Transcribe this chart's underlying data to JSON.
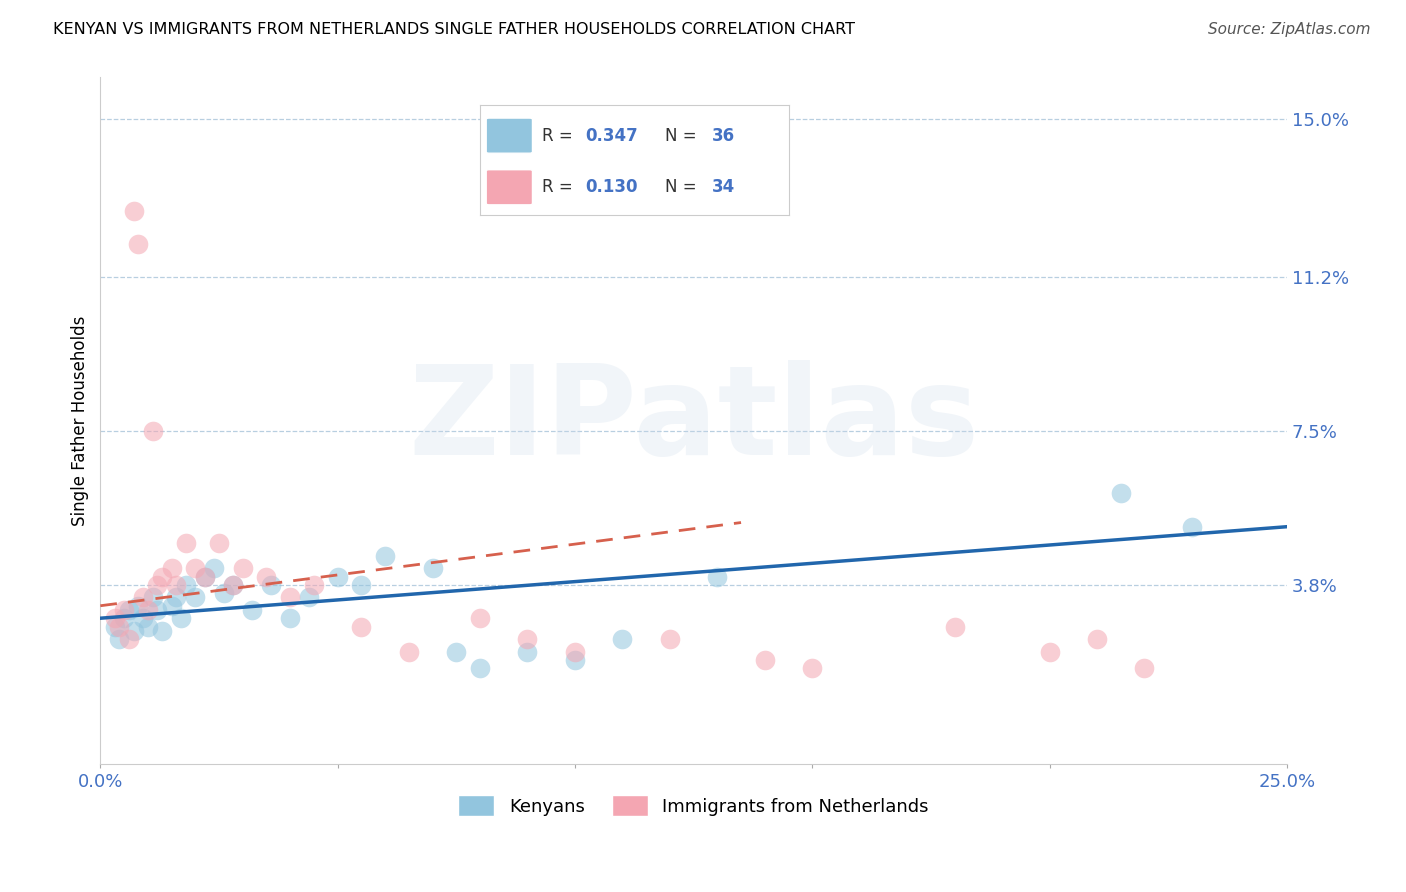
{
  "title": "KENYAN VS IMMIGRANTS FROM NETHERLANDS SINGLE FATHER HOUSEHOLDS CORRELATION CHART",
  "source": "Source: ZipAtlas.com",
  "ylabel": "Single Father Households",
  "xlim": [
    0.0,
    0.25
  ],
  "ylim": [
    -0.005,
    0.16
  ],
  "yticks": [
    0.038,
    0.075,
    0.112,
    0.15
  ],
  "ytick_labels": [
    "3.8%",
    "7.5%",
    "11.2%",
    "15.0%"
  ],
  "xticks": [
    0.0,
    0.05,
    0.1,
    0.15,
    0.2,
    0.25
  ],
  "xtick_labels": [
    "0.0%",
    "",
    "",
    "",
    "",
    "25.0%"
  ],
  "R_blue": 0.347,
  "N_blue": 36,
  "R_pink": 0.13,
  "N_pink": 34,
  "blue_color": "#92c5de",
  "pink_color": "#f4a6b2",
  "blue_line_color": "#2166ac",
  "pink_line_color": "#d6604d",
  "watermark_text": "ZIPatlas",
  "blue_scatter_x": [
    0.003,
    0.004,
    0.005,
    0.006,
    0.007,
    0.008,
    0.009,
    0.01,
    0.011,
    0.012,
    0.013,
    0.015,
    0.016,
    0.017,
    0.018,
    0.02,
    0.022,
    0.024,
    0.026,
    0.028,
    0.032,
    0.036,
    0.04,
    0.044,
    0.05,
    0.055,
    0.06,
    0.07,
    0.075,
    0.08,
    0.09,
    0.1,
    0.11,
    0.13,
    0.215,
    0.23
  ],
  "blue_scatter_y": [
    0.028,
    0.025,
    0.03,
    0.032,
    0.027,
    0.033,
    0.03,
    0.028,
    0.035,
    0.032,
    0.027,
    0.033,
    0.035,
    0.03,
    0.038,
    0.035,
    0.04,
    0.042,
    0.036,
    0.038,
    0.032,
    0.038,
    0.03,
    0.035,
    0.04,
    0.038,
    0.045,
    0.042,
    0.022,
    0.018,
    0.022,
    0.02,
    0.025,
    0.04,
    0.06,
    0.052
  ],
  "pink_scatter_x": [
    0.003,
    0.004,
    0.005,
    0.006,
    0.007,
    0.008,
    0.009,
    0.01,
    0.011,
    0.012,
    0.013,
    0.015,
    0.016,
    0.018,
    0.02,
    0.022,
    0.025,
    0.028,
    0.03,
    0.035,
    0.04,
    0.045,
    0.055,
    0.065,
    0.08,
    0.09,
    0.1,
    0.12,
    0.14,
    0.15,
    0.18,
    0.2,
    0.21,
    0.22
  ],
  "pink_scatter_y": [
    0.03,
    0.028,
    0.032,
    0.025,
    0.128,
    0.12,
    0.035,
    0.032,
    0.075,
    0.038,
    0.04,
    0.042,
    0.038,
    0.048,
    0.042,
    0.04,
    0.048,
    0.038,
    0.042,
    0.04,
    0.035,
    0.038,
    0.028,
    0.022,
    0.03,
    0.025,
    0.022,
    0.025,
    0.02,
    0.018,
    0.028,
    0.022,
    0.025,
    0.018
  ],
  "blue_trendline_x": [
    0.0,
    0.25
  ],
  "blue_trendline_y": [
    0.03,
    0.052
  ],
  "pink_trendline_x": [
    0.0,
    0.135
  ],
  "pink_trendline_y": [
    0.033,
    0.053
  ]
}
